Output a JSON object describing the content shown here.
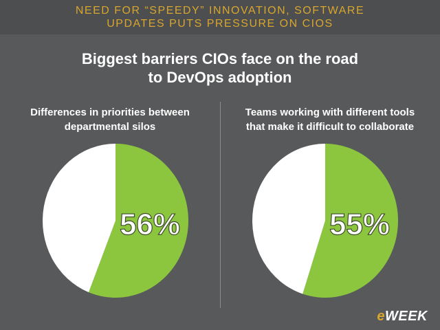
{
  "header": {
    "line1": "NEED FOR “SPEEDY” INNOVATION, SOFTWARE",
    "line2": "UPDATES PUTS PRESSURE ON CIOS"
  },
  "title": {
    "line1": "Biggest barriers CIOs face on the road",
    "line2": "to DevOps adoption"
  },
  "logo": {
    "prefix": "e",
    "rest": "WEEK"
  },
  "colors": {
    "green": "#8cc63f",
    "white": "#ffffff",
    "background": "#58595b",
    "header_text": "#d9a62e"
  },
  "chart_data": [
    {
      "type": "pie",
      "title_lines": [
        "Differences in priorities between",
        "departmental silos"
      ],
      "categories": [
        "",
        ""
      ],
      "values": [
        56,
        44
      ],
      "label": "56%"
    },
    {
      "type": "pie",
      "title_lines": [
        "Teams working with different tools",
        "that make it difficult to collaborate"
      ],
      "categories": [
        "",
        ""
      ],
      "values": [
        55,
        45
      ],
      "label": "55%"
    }
  ]
}
